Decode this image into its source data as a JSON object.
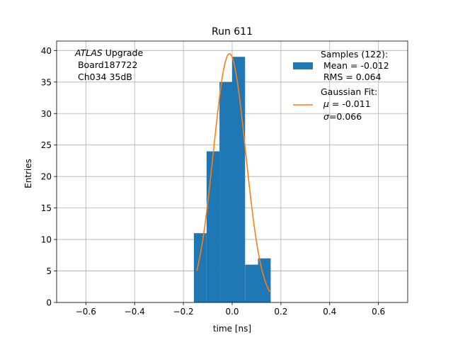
{
  "chart_data": {
    "type": "bar",
    "title": "Run 611",
    "xlabel": "time [ns]",
    "ylabel": "Entries",
    "xlim": [
      -0.72,
      0.72
    ],
    "ylim": [
      0,
      41.5
    ],
    "grid": true,
    "xticks": [
      -0.6,
      -0.4,
      -0.2,
      0.0,
      0.2,
      0.4,
      0.6
    ],
    "xtick_labels": [
      "−0.6",
      "−0.4",
      "−0.2",
      "0.0",
      "0.2",
      "0.4",
      "0.6"
    ],
    "yticks": [
      0,
      5,
      10,
      15,
      20,
      25,
      30,
      35,
      40
    ],
    "ytick_labels": [
      "0",
      "5",
      "10",
      "15",
      "20",
      "25",
      "30",
      "35",
      "40"
    ],
    "histogram": {
      "name": "Samples",
      "color": "#1f77b4",
      "bins": [
        {
          "x0": -0.157,
          "x1": -0.105,
          "count": 11
        },
        {
          "x0": -0.105,
          "x1": -0.052,
          "count": 24
        },
        {
          "x0": -0.052,
          "x1": 0.0,
          "count": 35
        },
        {
          "x0": 0.0,
          "x1": 0.053,
          "count": 39
        },
        {
          "x0": 0.053,
          "x1": 0.106,
          "count": 6
        },
        {
          "x0": 0.106,
          "x1": 0.158,
          "count": 7
        }
      ]
    },
    "fit": {
      "name": "Gaussian Fit",
      "color": "#ff7f0e",
      "mu": -0.011,
      "sigma": 0.066,
      "amplitude": 39.5,
      "x_range": [
        -0.145,
        0.155
      ]
    },
    "annotation": {
      "line1_italic": "ATLAS",
      "line1_rest": " Upgrade",
      "line2": " Board187722",
      "line3": " Ch034 35dB"
    },
    "legend": {
      "position": "top-right",
      "entry1": {
        "line1": "Samples (122):",
        "line2": " Mean = -0.012",
        "line3": " RMS = 0.064"
      },
      "entry2": {
        "line1": "Gaussian Fit:",
        "line2_symbol": "μ",
        "line2_rest": " = -0.011",
        "line3_symbol": "σ",
        "line3_rest": "=0.066"
      }
    }
  }
}
